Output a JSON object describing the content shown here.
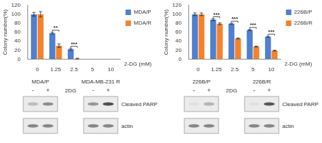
{
  "chart_data": [
    {
      "type": "bar",
      "y_label": "Colony number(%)",
      "x_label": "2-DG (mM)",
      "categories": [
        "0",
        "1.25",
        "2.5",
        "5",
        "10"
      ],
      "series": [
        {
          "name": "MDA/P",
          "color": "#4f7fcf",
          "values": [
            100,
            58,
            22,
            0,
            0
          ],
          "errors": [
            4,
            2,
            2,
            0,
            0
          ]
        },
        {
          "name": "MDA/R",
          "color": "#f5822a",
          "values": [
            100,
            30,
            1,
            0,
            0
          ],
          "errors": [
            6,
            4,
            1,
            0,
            0
          ]
        }
      ],
      "ylim": [
        0,
        120
      ],
      "yticks": [
        0,
        20,
        40,
        60,
        80,
        100,
        120
      ],
      "grid": false,
      "legend": "upper right",
      "annotations": [
        {
          "category": "1.25",
          "text": "**"
        },
        {
          "category": "2.5",
          "text": "***"
        }
      ]
    },
    {
      "type": "bar",
      "y_label": "Colony number(%)",
      "x_label": "2-DG (mM)",
      "categories": [
        "0",
        "1.25",
        "2.5",
        "5",
        "10"
      ],
      "series": [
        {
          "name": "226B/P",
          "color": "#4f7fcf",
          "values": [
            100,
            88,
            79,
            65,
            50
          ],
          "errors": [
            3,
            2,
            1,
            1,
            1
          ]
        },
        {
          "name": "226B/R",
          "color": "#f5822a",
          "values": [
            100,
            79,
            46,
            28,
            19
          ],
          "errors": [
            3,
            2,
            1,
            1,
            1
          ]
        }
      ],
      "ylim": [
        0,
        120
      ],
      "yticks": [
        0,
        20,
        40,
        60,
        80,
        100,
        120
      ],
      "grid": false,
      "legend": "upper right",
      "annotations": [
        {
          "category": "1.25",
          "text": "***"
        },
        {
          "category": "2.5",
          "text": "***"
        },
        {
          "category": "5",
          "text": "***"
        },
        {
          "category": "10",
          "text": "***"
        }
      ]
    }
  ],
  "blots": [
    {
      "groups": [
        "MDA/P",
        "MDA-MB-231 R"
      ],
      "treatment": "2DG",
      "lanes": [
        "-",
        "+"
      ],
      "rows": [
        "Cleaved PARP",
        "actin"
      ]
    },
    {
      "groups": [
        "226B/P",
        "226B/R"
      ],
      "treatment": "2DG",
      "lanes": [
        "-",
        "+"
      ],
      "rows": [
        "Cleaved PARP",
        "actin"
      ]
    }
  ]
}
